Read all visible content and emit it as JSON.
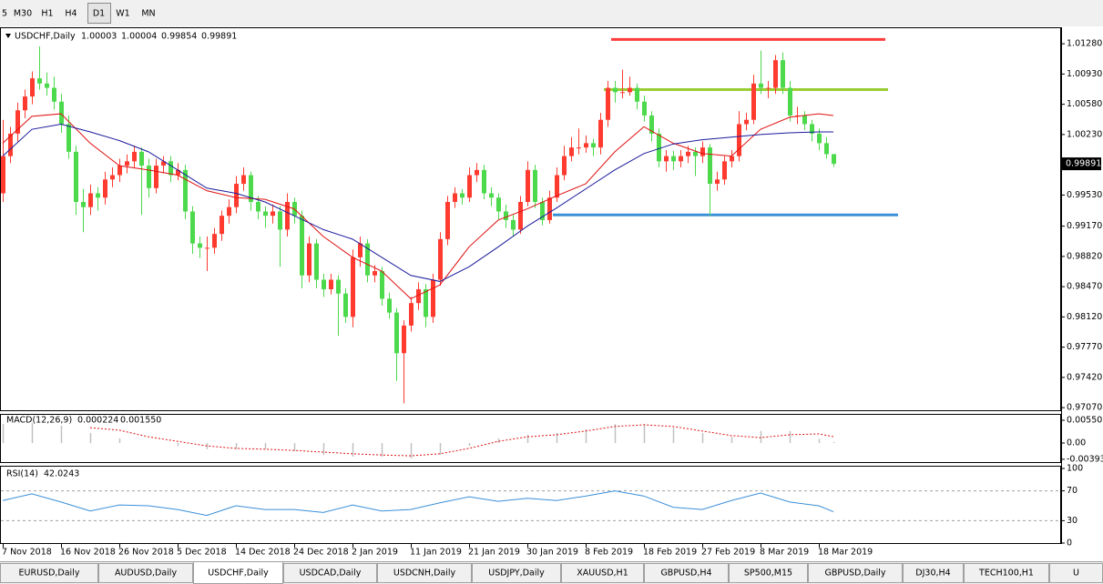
{
  "toolbar": [
    "5",
    "M30",
    "H1",
    "H4",
    "D1",
    "W1",
    "MN"
  ],
  "active_timeframe": 4,
  "tabs": [
    "EURUSD,Daily",
    "AUDUSD,Daily",
    "USDCHF,Daily",
    "USDCAD,Daily",
    "USDCNH,Daily",
    "USDJPY,Daily",
    "XAUUSD,H1",
    "GBPUSD,H4",
    "SP500,M15",
    "GBPUSD,Daily",
    "DJ30,H4",
    "TECH100,H1",
    "U"
  ],
  "active_tab": 2,
  "chart_data": {
    "type": "candlestick",
    "title": "USDCHF,Daily",
    "up_color": "#ff3b30",
    "down_color": "#4cd94c",
    "categories": [
      "7 Nov 2018",
      null,
      null,
      null,
      null,
      null,
      null,
      null,
      "16 Nov 2018",
      null,
      null,
      null,
      null,
      null,
      null,
      null,
      "26 Nov 2018",
      null,
      null,
      null,
      null,
      null,
      null,
      null,
      "5 Dec 2018",
      null,
      null,
      null,
      null,
      null,
      null,
      null,
      "14 Dec 2018",
      null,
      null,
      null,
      null,
      null,
      null,
      null,
      "24 Dec 2018",
      null,
      null,
      null,
      null,
      null,
      null,
      null,
      "2 Jan 2019",
      null,
      null,
      null,
      null,
      null,
      null,
      null,
      "11 Jan 2019",
      null,
      null,
      null,
      null,
      null,
      null,
      null,
      "21 Jan 2019",
      null,
      null,
      null,
      null,
      null,
      null,
      null,
      "30 Jan 2019",
      null,
      null,
      null,
      null,
      null,
      null,
      null,
      "8 Feb 2019",
      null,
      null,
      null,
      null,
      null,
      null,
      null,
      "18 Feb 2019",
      null,
      null,
      null,
      null,
      null,
      null,
      null,
      "27 Feb 2019",
      null,
      null,
      null,
      null,
      null,
      null,
      null,
      "8 Mar 2019",
      null,
      null,
      null,
      null,
      null,
      null,
      null,
      "18 Mar 2019",
      null,
      null
    ],
    "ohlc": [
      [
        0.9955,
        1.004,
        0.9945,
        0.9998
      ],
      [
        0.9998,
        1.0032,
        0.999,
        1.0024
      ],
      [
        1.0024,
        1.006,
        1.0015,
        1.0051
      ],
      [
        1.0051,
        1.0075,
        1.0042,
        1.0067
      ],
      [
        1.0067,
        1.0096,
        1.0058,
        1.0088
      ],
      [
        1.0088,
        1.0125,
        1.0075,
        1.0082
      ],
      [
        1.0082,
        1.0095,
        1.0068,
        1.0077
      ],
      [
        1.0077,
        1.009,
        1.0052,
        1.0061
      ],
      [
        1.0061,
        1.007,
        1.0025,
        1.0035
      ],
      [
        1.0035,
        1.0045,
        0.9995,
        1.0003
      ],
      [
        1.0003,
        1.001,
        0.993,
        0.9945
      ],
      [
        0.9945,
        0.996,
        0.991,
        0.9939
      ],
      [
        0.9939,
        0.9965,
        0.993,
        0.9955
      ],
      [
        0.9955,
        0.9962,
        0.9935,
        0.995
      ],
      [
        0.995,
        0.998,
        0.9942,
        0.9971
      ],
      [
        0.9971,
        0.9985,
        0.9962,
        0.9976
      ],
      [
        0.9976,
        0.9995,
        0.9968,
        0.9987
      ],
      [
        0.9987,
        1.0,
        0.9978,
        0.9992
      ],
      [
        0.9992,
        1.001,
        0.9985,
        1.0003
      ],
      [
        1.0003,
        1.0008,
        0.993,
        0.9987
      ],
      [
        0.9987,
        0.9995,
        0.995,
        0.9961
      ],
      [
        0.9961,
        0.9995,
        0.9955,
        0.9987
      ],
      [
        0.9987,
        0.9998,
        0.9978,
        0.9992
      ],
      [
        0.9992,
        0.9998,
        0.9968,
        0.9976
      ],
      [
        0.9976,
        0.999,
        0.997,
        0.9982
      ],
      [
        0.9982,
        0.9988,
        0.9925,
        0.9934
      ],
      [
        0.9934,
        0.994,
        0.9885,
        0.9897
      ],
      [
        0.9897,
        0.9905,
        0.988,
        0.9892
      ],
      [
        0.9892,
        0.9905,
        0.9865,
        0.9892
      ],
      [
        0.9892,
        0.9915,
        0.9885,
        0.9908
      ],
      [
        0.9908,
        0.9935,
        0.99,
        0.9929
      ],
      [
        0.9929,
        0.9948,
        0.992,
        0.9939
      ],
      [
        0.9939,
        0.9975,
        0.9932,
        0.9966
      ],
      [
        0.9966,
        0.9985,
        0.9958,
        0.9976
      ],
      [
        0.9976,
        0.998,
        0.9935,
        0.9945
      ],
      [
        0.9945,
        0.9952,
        0.9925,
        0.9934
      ],
      [
        0.9934,
        0.994,
        0.9915,
        0.9929
      ],
      [
        0.9929,
        0.9942,
        0.992,
        0.9934
      ],
      [
        0.9934,
        0.994,
        0.987,
        0.9913
      ],
      [
        0.9913,
        0.9955,
        0.9905,
        0.9945
      ],
      [
        0.9945,
        0.995,
        0.992,
        0.9929
      ],
      [
        0.9929,
        0.9935,
        0.9845,
        0.986
      ],
      [
        0.986,
        0.9905,
        0.9852,
        0.9897
      ],
      [
        0.9897,
        0.9902,
        0.9845,
        0.9855
      ],
      [
        0.9855,
        0.9862,
        0.9835,
        0.9844
      ],
      [
        0.9844,
        0.9862,
        0.9838,
        0.9855
      ],
      [
        0.9855,
        0.986,
        0.979,
        0.9839
      ],
      [
        0.9839,
        0.9845,
        0.9805,
        0.9812
      ],
      [
        0.9812,
        0.989,
        0.98,
        0.9881
      ],
      [
        0.9881,
        0.9905,
        0.987,
        0.9897
      ],
      [
        0.9897,
        0.9902,
        0.9852,
        0.986
      ],
      [
        0.986,
        0.9872,
        0.9852,
        0.9865
      ],
      [
        0.9865,
        0.987,
        0.9825,
        0.9833
      ],
      [
        0.9833,
        0.984,
        0.981,
        0.9817
      ],
      [
        0.9817,
        0.9822,
        0.9738,
        0.977
      ],
      [
        0.977,
        0.9808,
        0.9712,
        0.9802
      ],
      [
        0.9802,
        0.9835,
        0.9795,
        0.9828
      ],
      [
        0.9828,
        0.9852,
        0.982,
        0.9844
      ],
      [
        0.9844,
        0.985,
        0.98,
        0.9812
      ],
      [
        0.9812,
        0.9862,
        0.9805,
        0.9855
      ],
      [
        0.9855,
        0.991,
        0.9848,
        0.9902
      ],
      [
        0.9902,
        0.9952,
        0.9895,
        0.9945
      ],
      [
        0.9945,
        0.9962,
        0.9938,
        0.9955
      ],
      [
        0.9955,
        0.996,
        0.9942,
        0.995
      ],
      [
        0.995,
        0.9985,
        0.9945,
        0.9976
      ],
      [
        0.9976,
        0.999,
        0.9968,
        0.9982
      ],
      [
        0.9982,
        0.9988,
        0.9948,
        0.9955
      ],
      [
        0.9955,
        0.9962,
        0.994,
        0.995
      ],
      [
        0.995,
        0.9955,
        0.9925,
        0.9934
      ],
      [
        0.9934,
        0.9942,
        0.9915,
        0.9924
      ],
      [
        0.9924,
        0.993,
        0.9905,
        0.9913
      ],
      [
        0.9913,
        0.9952,
        0.9908,
        0.9945
      ],
      [
        0.9945,
        0.9992,
        0.994,
        0.9982
      ],
      [
        0.9982,
        0.9988,
        0.9938,
        0.9945
      ],
      [
        0.9945,
        0.995,
        0.9918,
        0.9924
      ],
      [
        0.9924,
        0.9958,
        0.992,
        0.995
      ],
      [
        0.995,
        0.9985,
        0.9945,
        0.9976
      ],
      [
        0.9976,
        1.001,
        0.997,
        0.9998
      ],
      [
        0.9998,
        1.002,
        0.9992,
        1.0008
      ],
      [
        1.0008,
        1.003,
        1.0,
        1.0008
      ],
      [
        1.0008,
        1.0022,
        1.0002,
        1.0013
      ],
      [
        1.0013,
        1.0018,
        0.9998,
        1.0008
      ],
      [
        1.0008,
        1.0048,
        1.0,
        1.004
      ],
      [
        1.004,
        1.0085,
        1.0032,
        1.0077
      ],
      [
        1.0077,
        1.0085,
        1.006,
        1.0072
      ],
      [
        1.0072,
        1.0098,
        1.0065,
        1.0072
      ],
      [
        1.0072,
        1.009,
        1.0068,
        1.0077
      ],
      [
        1.0077,
        1.0082,
        1.0052,
        1.0061
      ],
      [
        1.0061,
        1.0068,
        1.0038,
        1.0045
      ],
      [
        1.0045,
        1.005,
        1.0015,
        1.0024
      ],
      [
        1.0024,
        1.003,
        0.9985,
        0.9992
      ],
      [
        0.9992,
        1.0005,
        0.998,
        0.9998
      ],
      [
        0.9998,
        1.0004,
        0.9982,
        0.9992
      ],
      [
        0.9992,
        1.0005,
        0.9985,
        0.9998
      ],
      [
        0.9998,
        1.001,
        0.999,
        1.0003
      ],
      [
        1.0003,
        1.0008,
        0.9975,
        0.9998
      ],
      [
        0.9998,
        1.0015,
        0.999,
        1.0008
      ],
      [
        1.0008,
        1.0012,
        0.9929,
        0.9966
      ],
      [
        0.9966,
        0.998,
        0.9958,
        0.9971
      ],
      [
        0.9971,
        0.9998,
        0.9965,
        0.9992
      ],
      [
        0.9992,
        1.0005,
        0.9985,
        0.9998
      ],
      [
        0.9998,
        1.005,
        0.9992,
        1.0035
      ],
      [
        1.0035,
        1.0048,
        1.0028,
        1.004
      ],
      [
        1.004,
        1.0092,
        1.0035,
        1.0082
      ],
      [
        1.0082,
        1.012,
        1.007,
        1.0077
      ],
      [
        1.0077,
        1.0085,
        1.0065,
        1.0077
      ],
      [
        1.0077,
        1.0115,
        1.007,
        1.0109
      ],
      [
        1.0109,
        1.0118,
        1.007,
        1.0077
      ],
      [
        1.0077,
        1.0085,
        1.0038,
        1.0045
      ],
      [
        1.0045,
        1.0055,
        1.0035,
        1.0045
      ],
      [
        1.0045,
        1.005,
        1.0028,
        1.0035
      ],
      [
        1.0035,
        1.004,
        1.0015,
        1.0024
      ],
      [
        1.0024,
        1.003,
        1.0005,
        1.0013
      ],
      [
        1.0013,
        1.002,
        0.9995,
        1.00003
      ],
      [
        1.00003,
        1.00004,
        0.99854,
        0.99891
      ]
    ],
    "ylim": [
      0.9704,
      1.0146
    ],
    "yticks": [
      {
        "value": 1.0128,
        "label": "1.01280"
      },
      {
        "value": 1.0093,
        "label": "1.00930"
      },
      {
        "value": 1.0058,
        "label": "1.00580"
      },
      {
        "value": 1.0023,
        "label": "1.00230"
      },
      {
        "value": 0.9953,
        "label": "0.99530"
      },
      {
        "value": 0.9917,
        "label": "0.99170"
      },
      {
        "value": 0.9882,
        "label": "0.98820"
      },
      {
        "value": 0.9847,
        "label": "0.98470"
      },
      {
        "value": 0.9812,
        "label": "0.98120"
      },
      {
        "value": 0.9777,
        "label": "0.97770"
      },
      {
        "value": 0.9742,
        "label": "0.97420"
      },
      {
        "value": 0.9707,
        "label": "0.97070"
      }
    ],
    "overlays": [
      {
        "color": "#e01010",
        "x": [
          0,
          4,
          8,
          12,
          16,
          20,
          24,
          28,
          32,
          36,
          40,
          44,
          48,
          52,
          56,
          60,
          64,
          68,
          72,
          76,
          80,
          84,
          88,
          92,
          96,
          100,
          104,
          108,
          112,
          114
        ],
        "values": [
          1.0013,
          1.0044,
          1.0047,
          1.0013,
          0.9987,
          0.9982,
          0.9976,
          0.9958,
          0.995,
          0.9948,
          0.9937,
          0.9905,
          0.9881,
          0.9865,
          0.9833,
          0.9849,
          0.9893,
          0.9924,
          0.9937,
          0.9952,
          0.9966,
          1.0003,
          1.0032,
          1.0013,
          1.0001,
          0.9998,
          1.0029,
          1.0043,
          1.0047,
          1.0045
        ]
      },
      {
        "color": "#1a1a9c",
        "x": [
          0,
          4,
          8,
          12,
          16,
          20,
          24,
          28,
          32,
          36,
          40,
          44,
          48,
          52,
          56,
          60,
          64,
          68,
          72,
          76,
          80,
          84,
          88,
          92,
          96,
          100,
          104,
          108,
          112,
          114
        ],
        "values": [
          0.9998,
          1.0029,
          1.0035,
          1.0026,
          1.0016,
          1.0003,
          0.9982,
          0.9961,
          0.9955,
          0.9945,
          0.9929,
          0.9913,
          0.9902,
          0.9881,
          0.986,
          0.9853,
          0.987,
          0.9893,
          0.9917,
          0.9938,
          0.996,
          0.9982,
          1.0001,
          1.0012,
          1.0017,
          1.002,
          1.0023,
          1.0025,
          1.0026,
          1.0026
        ]
      }
    ],
    "levels": [
      {
        "value": 1.0133,
        "color": "#ff3b3b"
      },
      {
        "value": 1.0075,
        "color": "#9acd32"
      },
      {
        "value": 0.993,
        "color": "#3a8fd8"
      }
    ],
    "indicators": [
      {
        "type": "macd",
        "title": "MACD(12,26,9)",
        "x": [
          0,
          4,
          8,
          12,
          16,
          20,
          24,
          28,
          32,
          36,
          40,
          44,
          48,
          52,
          56,
          60,
          64,
          68,
          72,
          76,
          80,
          84,
          88,
          92,
          96,
          100,
          104,
          108,
          112,
          114
        ],
        "histogram": {
          "color": "#c0c0c0",
          "values": [
            0.0046,
            0.0048,
            0.0042,
            0.0024,
            0.0011,
            0,
            -0.0007,
            -0.0015,
            -0.0015,
            -0.0015,
            -0.002,
            -0.0029,
            -0.0033,
            -0.0033,
            -0.0037,
            -0.0029,
            -0.0007,
            0.0011,
            0.002,
            0.0024,
            0.0033,
            0.0046,
            0.0046,
            0.0037,
            0.0024,
            0.0015,
            0.0029,
            0.0029,
            0.001,
            0.000224
          ]
        },
        "signal": {
          "color": "#e01010",
          "values": [
            null,
            null,
            null,
            0.0037,
            0.0031,
            0.0015,
            0.0004,
            -0.0007,
            -0.0013,
            -0.0015,
            -0.0018,
            -0.0022,
            -0.0026,
            -0.0029,
            -0.0031,
            -0.0026,
            -0.0013,
            0.0004,
            0.0015,
            0.002,
            0.0029,
            0.004,
            0.0044,
            0.004,
            0.0029,
            0.0018,
            0.0013,
            0.002,
            0.0022,
            0.00155
          ],
          "value_labels": [
            null,
            null,
            null,
            null,
            null,
            null,
            null,
            null,
            null,
            null,
            null,
            null,
            null,
            null,
            null,
            null,
            null,
            null,
            null,
            null,
            null,
            null,
            null,
            null,
            null,
            null,
            null,
            null,
            null,
            "0.001550"
          ]
        },
        "ylim": [
          -0.00462,
          0.00682
        ],
        "yticks": [
          0.005501,
          {
            "value": 0,
            "label": "0.00"
          },
          -0.003931
        ]
      },
      {
        "type": "rsi",
        "title": "RSI(14)",
        "color": "#3a8fd8",
        "x": [
          0,
          4,
          8,
          12,
          16,
          20,
          24,
          28,
          32,
          36,
          40,
          44,
          48,
          52,
          56,
          60,
          64,
          68,
          72,
          76,
          80,
          84,
          88,
          92,
          96,
          100,
          104,
          108,
          112,
          114
        ],
        "values": [
          57,
          66,
          55,
          43,
          51,
          50,
          45,
          37,
          50,
          45,
          45,
          41,
          51,
          43,
          45,
          54,
          62,
          56,
          60,
          57,
          63,
          70,
          63,
          48,
          45,
          57,
          67,
          55,
          50,
          42.0243
        ],
        "ylim": [
          0,
          100
        ],
        "yticks": [
          100,
          70,
          30,
          0
        ],
        "levels": [
          70,
          30
        ]
      }
    ]
  }
}
